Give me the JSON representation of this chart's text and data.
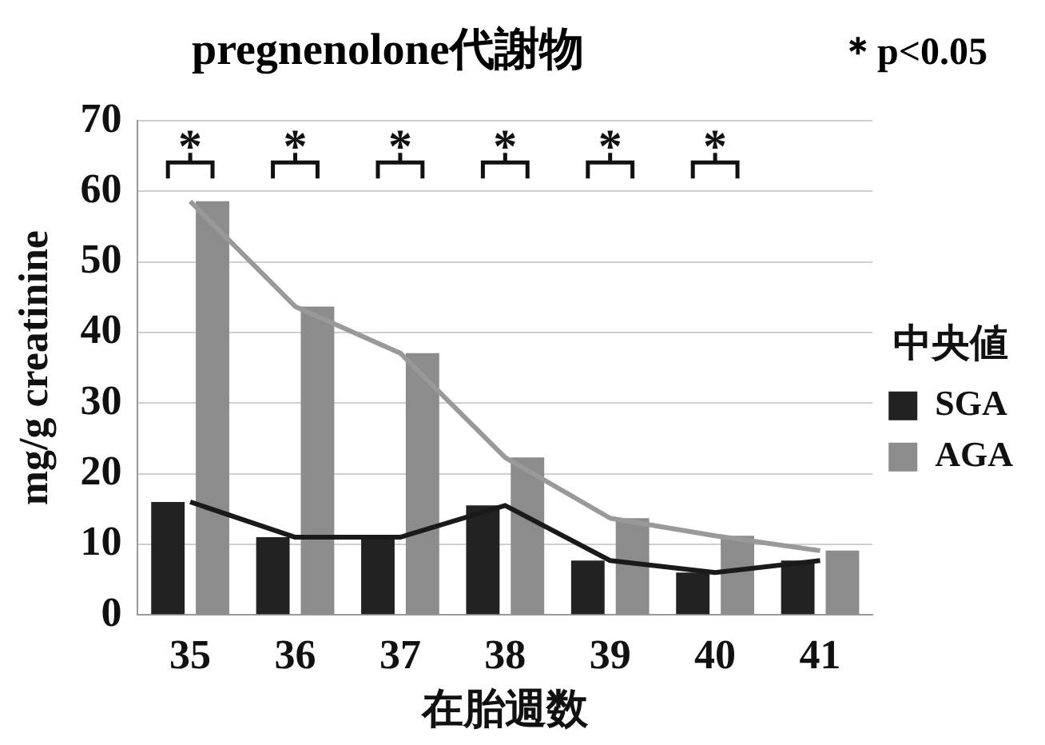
{
  "chart_data": {
    "type": "bar",
    "title": "pregnenolone代謝物",
    "xlabel": "在胎週数",
    "ylabel": "mg/g creatinine",
    "legend_title": "中央値",
    "categories": [
      "35",
      "36",
      "37",
      "38",
      "39",
      "40",
      "41"
    ],
    "series": [
      {
        "name": "SGA",
        "color": "#222222",
        "values": [
          16,
          11,
          11,
          15.5,
          7.7,
          6,
          7.7
        ]
      },
      {
        "name": "AGA",
        "color": "#8c8c8c",
        "values": [
          58.6,
          43.7,
          37.1,
          22.3,
          13.7,
          11.2,
          9.1
        ]
      },
      {
        "type": "line",
        "color": "#1a1a1a",
        "values": [
          16,
          11,
          11,
          15.5,
          7.7,
          6,
          7.7
        ]
      },
      {
        "type": "line",
        "color": "#999999",
        "values": [
          58.6,
          43.7,
          37.1,
          22.3,
          13.7,
          11.2,
          9.1
        ]
      }
    ],
    "ylim": [
      0,
      70
    ],
    "yticks": [
      0,
      10,
      20,
      30,
      40,
      50,
      60,
      70
    ],
    "grid": "y",
    "legend": "right",
    "marker": "none",
    "annotations": [
      "＊p<0.05",
      "*",
      "*",
      "*",
      "*",
      "*",
      "*"
    ]
  }
}
